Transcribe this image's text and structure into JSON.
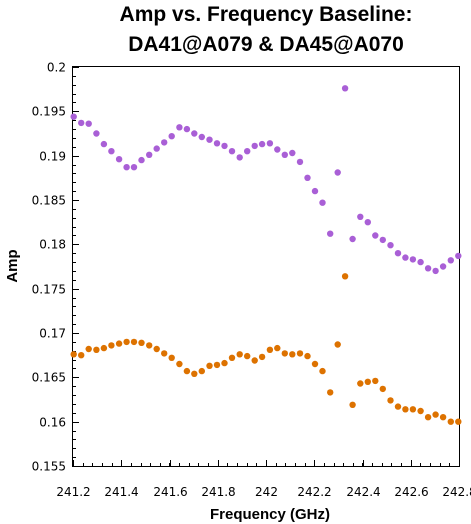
{
  "chart_data": {
    "type": "scatter",
    "title_lines": [
      "Amp vs. Frequency Baseline:",
      "DA41@A079 & DA45@A070"
    ],
    "xlabel": "Frequency (GHz)",
    "ylabel": "Amp",
    "xlim": [
      241.2,
      242.8
    ],
    "ylim": [
      0.155,
      0.2
    ],
    "xticks": [
      241.2,
      241.4,
      241.6,
      241.8,
      242.0,
      242.2,
      242.4,
      242.6,
      242.8
    ],
    "xtick_labels": [
      "241.2",
      "241.4",
      "241.6",
      "241.8",
      "242",
      "242.2",
      "242.4",
      "242.6",
      "242.8"
    ],
    "yticks": [
      0.155,
      0.16,
      0.165,
      0.17,
      0.175,
      0.18,
      0.185,
      0.19,
      0.195,
      0.2
    ],
    "ytick_labels": [
      "0.155",
      "0.16",
      "0.165",
      "0.17",
      "0.175",
      "0.18",
      "0.185",
      "0.19",
      "0.195",
      "0.2"
    ],
    "grid": false,
    "series": [
      {
        "color": "#a95fd6",
        "points": [
          [
            241.203,
            0.1944
          ],
          [
            241.234,
            0.1937
          ],
          [
            241.265,
            0.1936
          ],
          [
            241.297,
            0.1925
          ],
          [
            241.328,
            0.1913
          ],
          [
            241.359,
            0.1905
          ],
          [
            241.391,
            0.1896
          ],
          [
            241.422,
            0.1887
          ],
          [
            241.453,
            0.1887
          ],
          [
            241.484,
            0.1895
          ],
          [
            241.516,
            0.1901
          ],
          [
            241.547,
            0.1908
          ],
          [
            241.578,
            0.1915
          ],
          [
            241.609,
            0.1922
          ],
          [
            241.641,
            0.1932
          ],
          [
            241.672,
            0.193
          ],
          [
            241.703,
            0.1925
          ],
          [
            241.734,
            0.1921
          ],
          [
            241.766,
            0.1918
          ],
          [
            241.797,
            0.1914
          ],
          [
            241.828,
            0.1911
          ],
          [
            241.859,
            0.1905
          ],
          [
            241.891,
            0.1898
          ],
          [
            241.922,
            0.1905
          ],
          [
            241.953,
            0.1911
          ],
          [
            241.984,
            0.1913
          ],
          [
            242.016,
            0.1914
          ],
          [
            242.047,
            0.1907
          ],
          [
            242.078,
            0.1901
          ],
          [
            242.109,
            0.1903
          ],
          [
            242.141,
            0.1893
          ],
          [
            242.172,
            0.1875
          ],
          [
            242.203,
            0.186
          ],
          [
            242.234,
            0.1847
          ],
          [
            242.266,
            0.1812
          ],
          [
            242.297,
            0.1881
          ],
          [
            242.328,
            0.1976
          ],
          [
            242.359,
            0.1806
          ],
          [
            242.391,
            0.1831
          ],
          [
            242.422,
            0.1825
          ],
          [
            242.453,
            0.181
          ],
          [
            242.484,
            0.1805
          ],
          [
            242.516,
            0.1799
          ],
          [
            242.547,
            0.179
          ],
          [
            242.578,
            0.1785
          ],
          [
            242.609,
            0.1783
          ],
          [
            242.641,
            0.178
          ],
          [
            242.672,
            0.1773
          ],
          [
            242.703,
            0.177
          ],
          [
            242.734,
            0.1775
          ],
          [
            242.766,
            0.1782
          ],
          [
            242.797,
            0.1787
          ]
        ]
      },
      {
        "color": "#dd7200",
        "points": [
          [
            241.203,
            0.1676
          ],
          [
            241.234,
            0.1675
          ],
          [
            241.265,
            0.1682
          ],
          [
            241.297,
            0.1681
          ],
          [
            241.328,
            0.1683
          ],
          [
            241.359,
            0.1686
          ],
          [
            241.391,
            0.1688
          ],
          [
            241.422,
            0.169
          ],
          [
            241.453,
            0.169
          ],
          [
            241.484,
            0.1689
          ],
          [
            241.516,
            0.1686
          ],
          [
            241.547,
            0.1682
          ],
          [
            241.578,
            0.1677
          ],
          [
            241.609,
            0.1672
          ],
          [
            241.641,
            0.1665
          ],
          [
            241.672,
            0.1657
          ],
          [
            241.703,
            0.1654
          ],
          [
            241.734,
            0.1657
          ],
          [
            241.766,
            0.1663
          ],
          [
            241.797,
            0.1664
          ],
          [
            241.828,
            0.1666
          ],
          [
            241.859,
            0.1672
          ],
          [
            241.891,
            0.1676
          ],
          [
            241.922,
            0.1674
          ],
          [
            241.953,
            0.1669
          ],
          [
            241.984,
            0.1673
          ],
          [
            242.016,
            0.1681
          ],
          [
            242.047,
            0.1683
          ],
          [
            242.078,
            0.1677
          ],
          [
            242.109,
            0.1676
          ],
          [
            242.141,
            0.1677
          ],
          [
            242.172,
            0.1674
          ],
          [
            242.203,
            0.1665
          ],
          [
            242.234,
            0.1657
          ],
          [
            242.266,
            0.1633
          ],
          [
            242.297,
            0.1687
          ],
          [
            242.328,
            0.1764
          ],
          [
            242.359,
            0.1619
          ],
          [
            242.391,
            0.1643
          ],
          [
            242.422,
            0.1645
          ],
          [
            242.453,
            0.1646
          ],
          [
            242.484,
            0.1637
          ],
          [
            242.516,
            0.1624
          ],
          [
            242.547,
            0.1617
          ],
          [
            242.578,
            0.1614
          ],
          [
            242.609,
            0.1614
          ],
          [
            242.641,
            0.1612
          ],
          [
            242.672,
            0.1605
          ],
          [
            242.703,
            0.1608
          ],
          [
            242.734,
            0.1605
          ],
          [
            242.766,
            0.16
          ],
          [
            242.797,
            0.16
          ]
        ]
      }
    ]
  }
}
